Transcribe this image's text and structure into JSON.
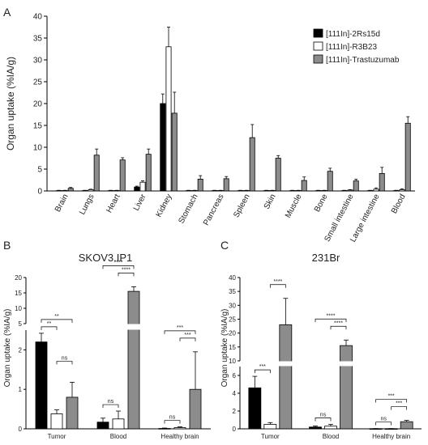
{
  "chart_data": [
    {
      "panel": "A",
      "type": "bar",
      "ylabel": "Organ uptake (%IA/g)",
      "ylim": [
        0,
        40
      ],
      "yticks": [
        0,
        5,
        10,
        15,
        20,
        25,
        30,
        35,
        40
      ],
      "categories": [
        "Brain",
        "Lungs",
        "Heart",
        "Liver",
        "Kidney",
        "Stomach",
        "Pancreas",
        "Spleen",
        "Skin",
        "Muscle",
        "Bone",
        "Small intestine",
        "Large intestine",
        "Blood"
      ],
      "series": [
        {
          "name": "[111In]-2Rs15d",
          "color": "#000000",
          "values": [
            0.1,
            0.1,
            0.1,
            0.9,
            20.0,
            0.1,
            0.1,
            0.1,
            0.1,
            0.1,
            0.1,
            0.1,
            0.1,
            0.1
          ],
          "errors": [
            0.05,
            0.05,
            0.05,
            0.2,
            2.2,
            0.05,
            0.05,
            0.05,
            0.05,
            0.05,
            0.05,
            0.05,
            0.05,
            0.05
          ]
        },
        {
          "name": "[111In]-R3B23",
          "color": "#ffffff",
          "values": [
            0.1,
            0.3,
            0.1,
            2.0,
            33.0,
            0.1,
            0.1,
            0.1,
            0.1,
            0.1,
            0.1,
            0.2,
            0.4,
            0.3
          ],
          "errors": [
            0.05,
            0.1,
            0.05,
            0.3,
            4.5,
            0.05,
            0.05,
            0.05,
            0.05,
            0.05,
            0.05,
            0.1,
            0.3,
            0.2
          ]
        },
        {
          "name": "[111In]-Trastuzumab",
          "color": "#8c8c8c",
          "values": [
            0.6,
            8.2,
            7.1,
            8.4,
            17.8,
            2.7,
            2.8,
            12.2,
            7.5,
            2.4,
            4.5,
            2.3,
            4.0,
            15.5
          ],
          "errors": [
            0.2,
            1.4,
            0.5,
            1.2,
            4.8,
            0.8,
            0.5,
            3.0,
            0.6,
            0.8,
            0.7,
            0.4,
            1.4,
            1.5
          ]
        }
      ],
      "legend": "top-right"
    },
    {
      "panel": "B",
      "type": "bar",
      "title": "SKOV3.IP1",
      "ylabel": "Organ uptake (%IA/g)",
      "broken_axis": true,
      "ylim_lower": [
        0,
        2.5
      ],
      "yticks_lower": [
        0,
        1,
        2
      ],
      "ylim_upper": [
        5,
        20
      ],
      "yticks_upper": [
        5,
        10,
        15,
        20
      ],
      "categories": [
        "Tumor",
        "Blood",
        "Healthy brain"
      ],
      "series": [
        {
          "name": "[111In]-2Rs15d",
          "color": "#000000",
          "values": [
            2.2,
            0.17,
            0.01
          ],
          "errors": [
            0.22,
            0.1,
            0.01
          ]
        },
        {
          "name": "[111In]-R3B23",
          "color": "#ffffff",
          "values": [
            0.38,
            0.25,
            0.03
          ],
          "errors": [
            0.1,
            0.2,
            0.02
          ]
        },
        {
          "name": "[111In]-Trastuzumab",
          "color": "#8c8c8c",
          "values": [
            0.8,
            15.5,
            1.0
          ],
          "errors": [
            0.38,
            1.5,
            0.95
          ]
        }
      ],
      "significance": [
        {
          "group": 0,
          "from": 0,
          "to": 1,
          "label": "**"
        },
        {
          "group": 0,
          "from": 0,
          "to": 2,
          "label": "**"
        },
        {
          "group": 0,
          "from": 1,
          "to": 2,
          "label": "ns"
        },
        {
          "group": 1,
          "from": 0,
          "to": 1,
          "label": "ns"
        },
        {
          "group": 1,
          "from": 1,
          "to": 2,
          "label": "****"
        },
        {
          "group": 1,
          "from": 0,
          "to": 2,
          "label": "****"
        },
        {
          "group": 2,
          "from": 0,
          "to": 1,
          "label": "ns"
        },
        {
          "group": 2,
          "from": 1,
          "to": 2,
          "label": "***"
        },
        {
          "group": 2,
          "from": 0,
          "to": 2,
          "label": "***"
        }
      ]
    },
    {
      "panel": "C",
      "type": "bar",
      "title": "231Br",
      "ylabel": "Organ uptake (%IA/g)",
      "broken_axis": true,
      "ylim_lower": [
        0,
        7
      ],
      "yticks_lower": [
        0,
        2,
        4,
        6
      ],
      "ylim_upper": [
        10,
        40
      ],
      "yticks_upper": [
        10,
        15,
        20,
        25,
        30,
        35,
        40
      ],
      "categories": [
        "Tumor",
        "Blood",
        "Healthy brain"
      ],
      "series": [
        {
          "name": "[111In]-2Rs15d",
          "color": "#000000",
          "values": [
            4.6,
            0.2,
            0.02
          ],
          "errors": [
            1.3,
            0.12,
            0.01
          ]
        },
        {
          "name": "[111In]-R3B23",
          "color": "#ffffff",
          "values": [
            0.5,
            0.3,
            0.02
          ],
          "errors": [
            0.2,
            0.2,
            0.01
          ]
        },
        {
          "name": "[111In]-Trastuzumab",
          "color": "#8c8c8c",
          "values": [
            23.0,
            15.5,
            0.8
          ],
          "errors": [
            9.5,
            2.0,
            0.15
          ]
        }
      ],
      "significance": [
        {
          "group": 0,
          "from": 0,
          "to": 1,
          "label": "***"
        },
        {
          "group": 0,
          "from": 1,
          "to": 2,
          "label": "****"
        },
        {
          "group": 1,
          "from": 0,
          "to": 1,
          "label": "ns"
        },
        {
          "group": 1,
          "from": 1,
          "to": 2,
          "label": "****"
        },
        {
          "group": 1,
          "from": 0,
          "to": 2,
          "label": "****"
        },
        {
          "group": 2,
          "from": 0,
          "to": 1,
          "label": "ns"
        },
        {
          "group": 2,
          "from": 1,
          "to": 2,
          "label": "***"
        },
        {
          "group": 2,
          "from": 0,
          "to": 2,
          "label": "***"
        }
      ]
    }
  ]
}
